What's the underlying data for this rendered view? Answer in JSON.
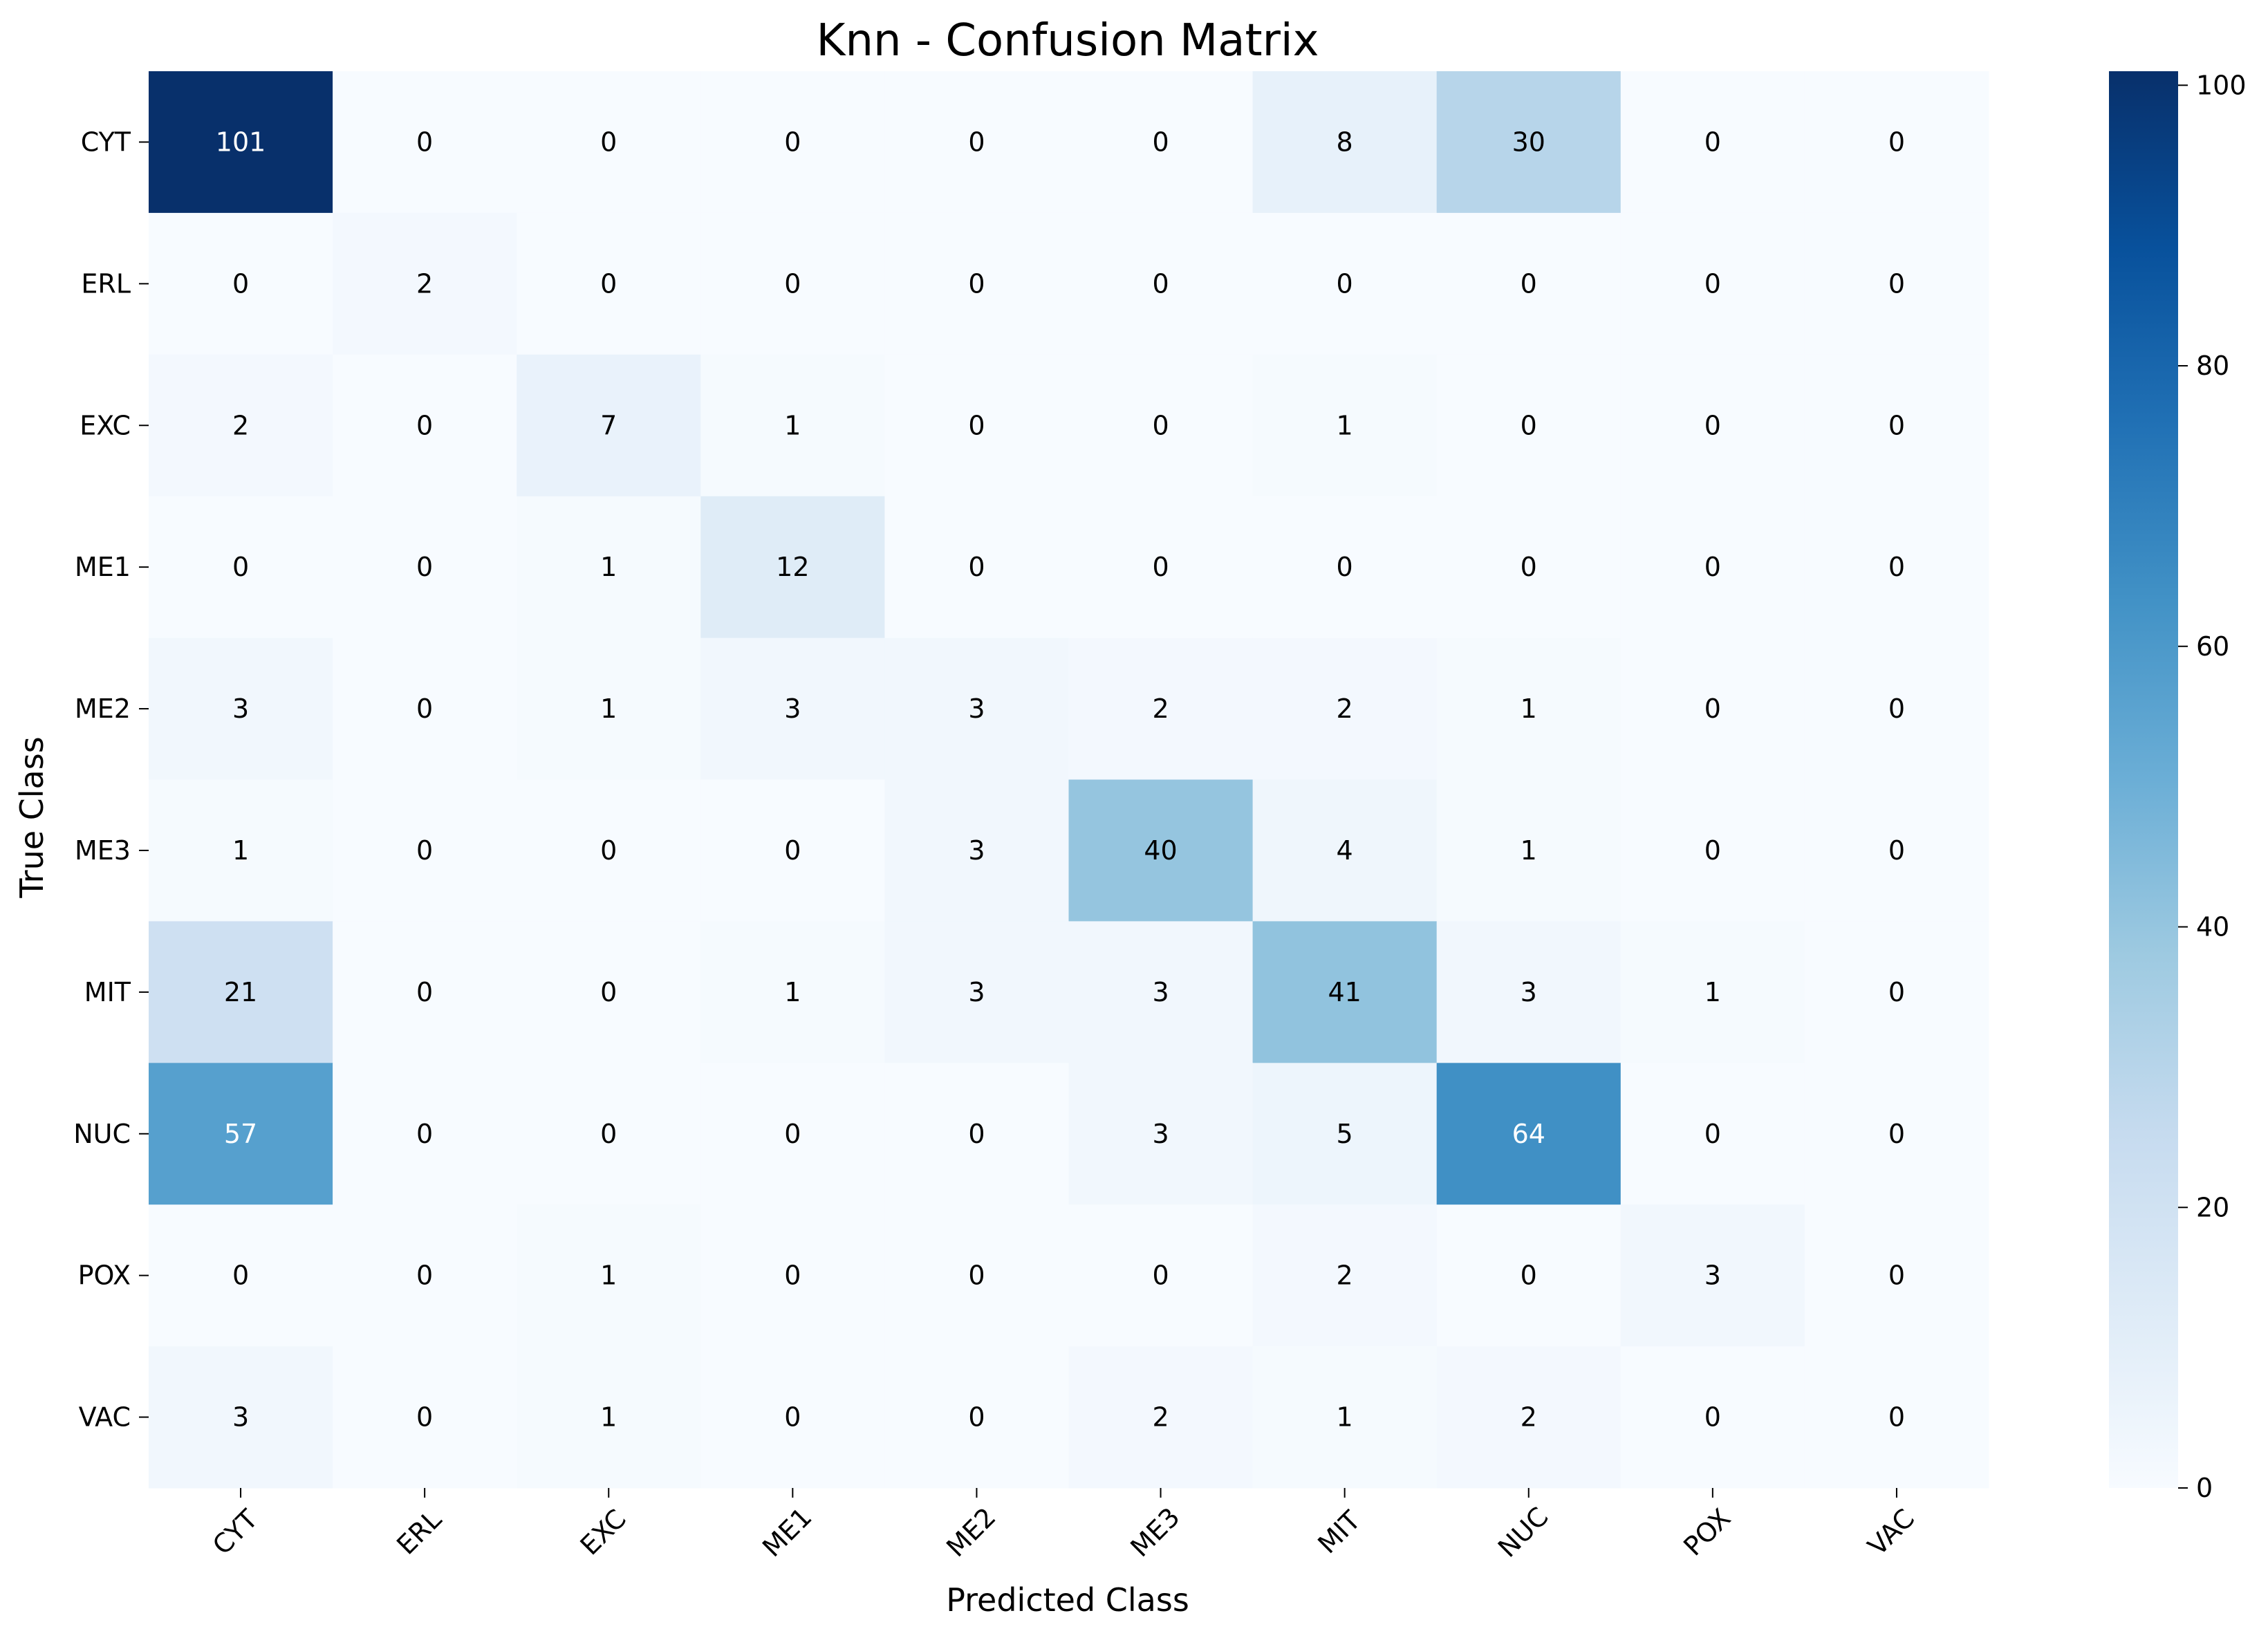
{
  "chart_data": {
    "type": "heatmap",
    "title": "Knn - Confusion Matrix",
    "xlabel": "Predicted Class",
    "ylabel": "True Class",
    "x_categories": [
      "CYT",
      "ERL",
      "EXC",
      "ME1",
      "ME2",
      "ME3",
      "MIT",
      "NUC",
      "POX",
      "VAC"
    ],
    "y_categories": [
      "CYT",
      "ERL",
      "EXC",
      "ME1",
      "ME2",
      "ME3",
      "MIT",
      "NUC",
      "POX",
      "VAC"
    ],
    "values": [
      [
        101,
        0,
        0,
        0,
        0,
        0,
        8,
        30,
        0,
        0
      ],
      [
        0,
        2,
        0,
        0,
        0,
        0,
        0,
        0,
        0,
        0
      ],
      [
        2,
        0,
        7,
        1,
        0,
        0,
        1,
        0,
        0,
        0
      ],
      [
        0,
        0,
        1,
        12,
        0,
        0,
        0,
        0,
        0,
        0
      ],
      [
        3,
        0,
        1,
        3,
        3,
        2,
        2,
        1,
        0,
        0
      ],
      [
        1,
        0,
        0,
        0,
        3,
        40,
        4,
        1,
        0,
        0
      ],
      [
        21,
        0,
        0,
        1,
        3,
        3,
        41,
        3,
        1,
        0
      ],
      [
        57,
        0,
        0,
        0,
        0,
        3,
        5,
        64,
        0,
        0
      ],
      [
        0,
        0,
        1,
        0,
        0,
        0,
        2,
        0,
        3,
        0
      ],
      [
        3,
        0,
        1,
        0,
        0,
        2,
        1,
        2,
        0,
        0
      ]
    ],
    "colormap": "Blues",
    "colorbar": {
      "range": [
        0,
        101
      ],
      "ticks": [
        0,
        20,
        40,
        60,
        80,
        100
      ]
    },
    "annotate": true,
    "grid": false,
    "legend": "colorbar-right"
  }
}
